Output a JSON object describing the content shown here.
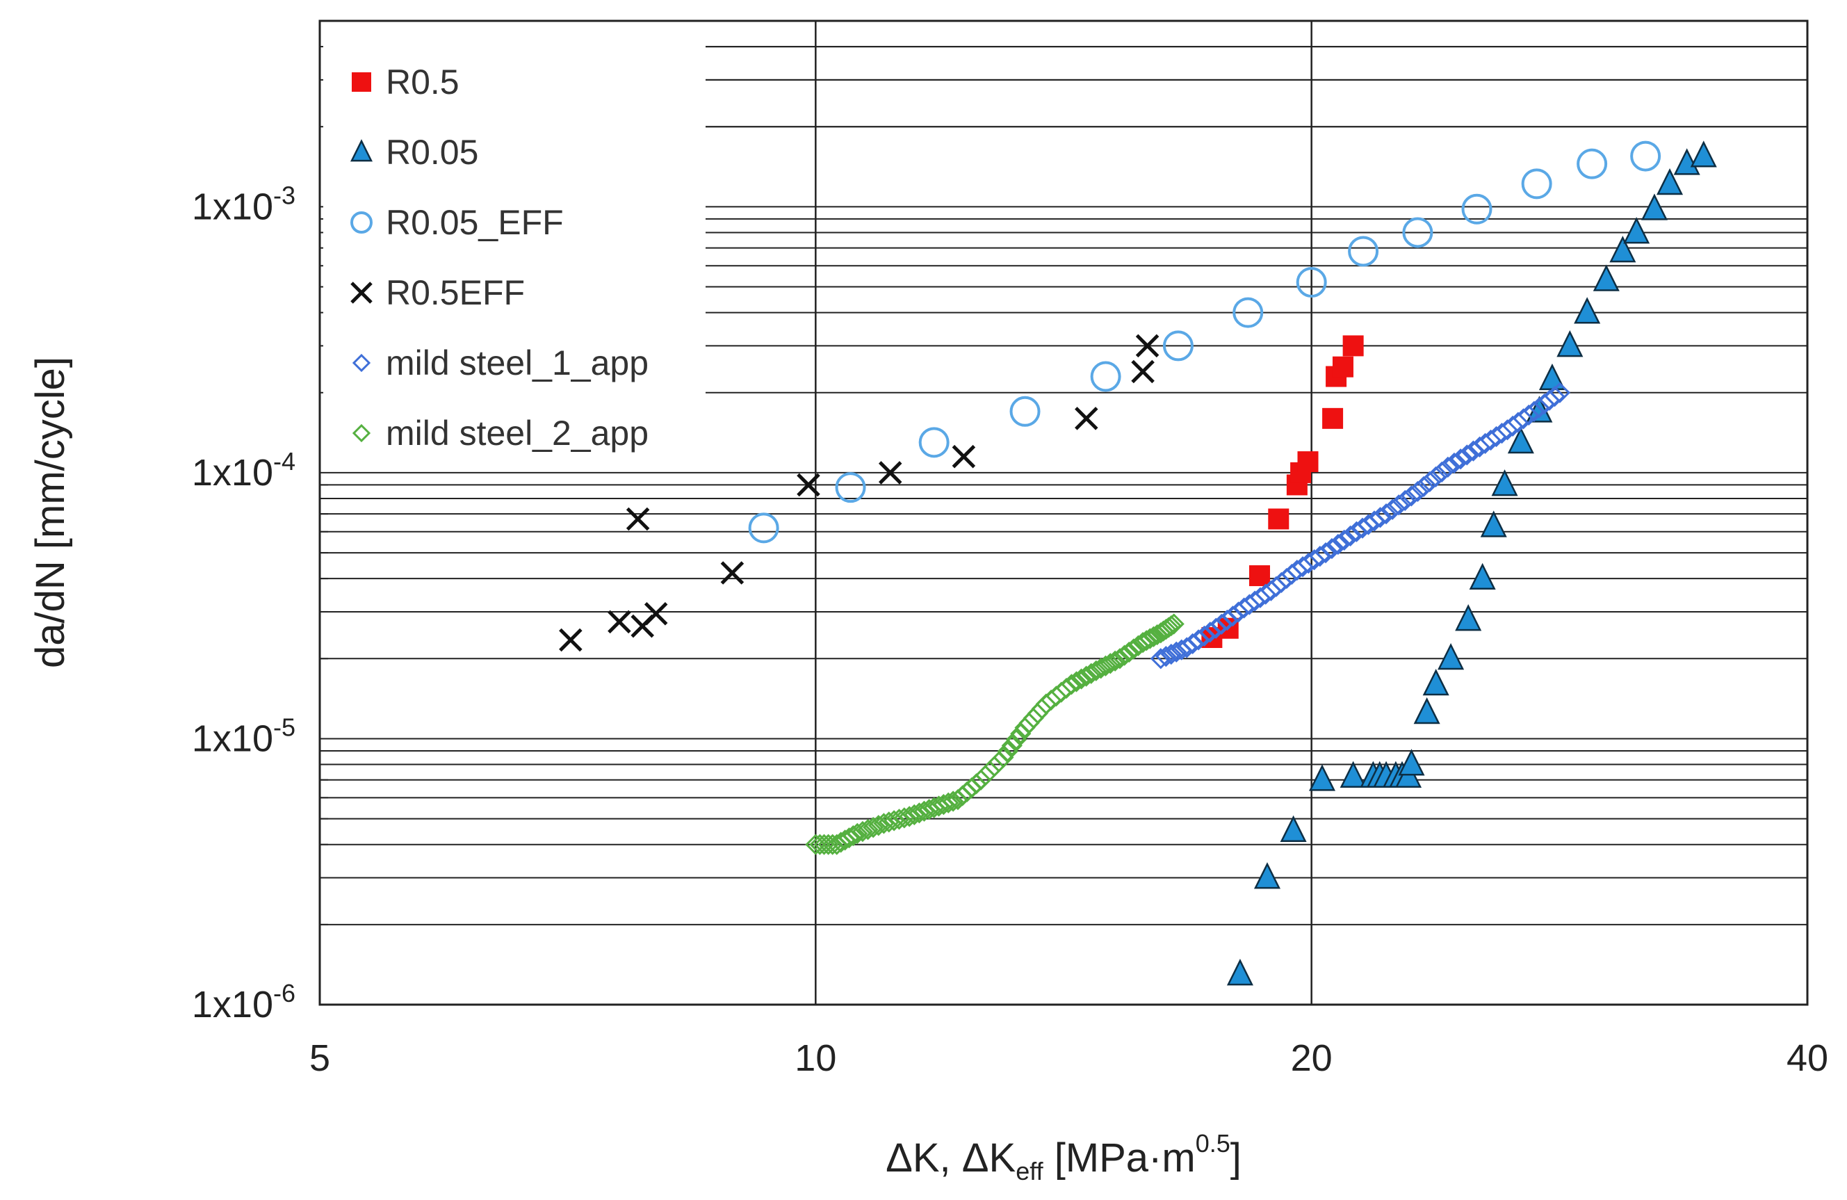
{
  "chart_data": {
    "type": "scatter",
    "title": "",
    "xlabel": "ΔK, ΔKeff [MPa·m0.5]",
    "xlabel_parts": {
      "main": "ΔK, ΔK",
      "sub": "eff",
      "unit_open": " [MPa·m",
      "sup": "0.5",
      "unit_close": "]"
    },
    "ylabel": "da/dN [mm/cycle]",
    "xscale": "log",
    "yscale": "log",
    "xlim": [
      5,
      40
    ],
    "ylim": [
      1e-06,
      0.005
    ],
    "x_ticks": [
      5,
      10,
      20,
      40
    ],
    "x_tick_labels": [
      "5",
      "10",
      "20",
      "40"
    ],
    "y_ticks": [
      1e-06,
      1e-05,
      0.0001,
      0.001
    ],
    "y_tick_labels": [
      {
        "base": "1x10",
        "exp": "-6"
      },
      {
        "base": "1x10",
        "exp": "-5"
      },
      {
        "base": "1x10",
        "exp": "-4"
      },
      {
        "base": "1x10",
        "exp": "-3"
      }
    ],
    "grid": "horizontal minor + major, vertical at major x ticks",
    "legend_position": "top-left",
    "series": [
      {
        "name": "R0.5",
        "marker": "square",
        "color": "#ee1111",
        "points": [
          [
            17.4,
            2.4e-05
          ],
          [
            17.8,
            2.6e-05
          ],
          [
            18.6,
            4.1e-05
          ],
          [
            19.1,
            6.7e-05
          ],
          [
            19.6,
            9e-05
          ],
          [
            19.7,
            0.0001
          ],
          [
            19.9,
            0.00011
          ],
          [
            20.6,
            0.00016
          ],
          [
            20.7,
            0.00023
          ],
          [
            20.9,
            0.00025
          ],
          [
            21.2,
            0.0003
          ]
        ]
      },
      {
        "name": "R0.05",
        "marker": "triangle",
        "color": "#1f8fd6",
        "points": [
          [
            18.1,
            1.3e-06
          ],
          [
            18.8,
            3e-06
          ],
          [
            19.5,
            4.5e-06
          ],
          [
            20.3,
            7e-06
          ],
          [
            21.2,
            7.2e-06
          ],
          [
            21.8,
            7.2e-06
          ],
          [
            22.0,
            7.2e-06
          ],
          [
            22.2,
            7.2e-06
          ],
          [
            22.5,
            7.2e-06
          ],
          [
            22.7,
            7.2e-06
          ],
          [
            22.9,
            7.2e-06
          ],
          [
            23.0,
            8e-06
          ],
          [
            23.5,
            1.25e-05
          ],
          [
            23.8,
            1.6e-05
          ],
          [
            24.3,
            2e-05
          ],
          [
            24.9,
            2.8e-05
          ],
          [
            25.4,
            4e-05
          ],
          [
            25.8,
            6.3e-05
          ],
          [
            26.2,
            9e-05
          ],
          [
            26.8,
            0.00013
          ],
          [
            27.5,
            0.00017
          ],
          [
            28.0,
            0.000225
          ],
          [
            28.7,
            0.0003
          ],
          [
            29.4,
            0.0004
          ],
          [
            30.2,
            0.00053
          ],
          [
            30.9,
            0.00068
          ],
          [
            31.5,
            0.0008
          ],
          [
            32.3,
            0.00098
          ],
          [
            33.0,
            0.00122
          ],
          [
            33.8,
            0.00145
          ],
          [
            34.6,
            0.00155
          ]
        ]
      },
      {
        "name": "R0.05_EFF",
        "marker": "circle-open",
        "color": "#5aa8e6",
        "points": [
          [
            9.3,
            6.2e-05
          ],
          [
            10.5,
            8.8e-05
          ],
          [
            11.8,
            0.00013
          ],
          [
            13.4,
            0.00017
          ],
          [
            15.0,
            0.00023
          ],
          [
            16.6,
            0.0003
          ],
          [
            18.3,
            0.0004
          ],
          [
            20.0,
            0.00052
          ],
          [
            21.5,
            0.00068
          ],
          [
            23.2,
            0.0008
          ],
          [
            25.2,
            0.00098
          ],
          [
            27.4,
            0.00122
          ],
          [
            29.6,
            0.00145
          ],
          [
            31.9,
            0.00155
          ]
        ]
      },
      {
        "name": "R0.5EFF",
        "marker": "x",
        "color": "#111111",
        "points": [
          [
            7.1,
            2.35e-05
          ],
          [
            7.6,
            2.75e-05
          ],
          [
            7.8,
            6.7e-05
          ],
          [
            7.85,
            2.65e-05
          ],
          [
            8.0,
            2.95e-05
          ],
          [
            8.9,
            4.2e-05
          ],
          [
            9.9,
            9e-05
          ],
          [
            11.1,
            0.0001
          ],
          [
            12.3,
            0.000115
          ],
          [
            14.6,
            0.00016
          ],
          [
            15.8,
            0.00024
          ],
          [
            15.9,
            0.0003
          ]
        ]
      },
      {
        "name": "mild steel_1_app",
        "marker": "diamond-open",
        "color": "#3f6fd8",
        "points": [
          [
            16.2,
            2e-05
          ],
          [
            16.8,
            2.2e-05
          ],
          [
            17.5,
            2.6e-05
          ],
          [
            18.2,
            3.1e-05
          ],
          [
            18.9,
            3.6e-05
          ],
          [
            19.6,
            4.3e-05
          ],
          [
            20.4,
            5e-05
          ],
          [
            21.3,
            6e-05
          ],
          [
            22.2,
            7e-05
          ],
          [
            23.2,
            8.5e-05
          ],
          [
            24.2,
            0.000105
          ],
          [
            25.3,
            0.000125
          ],
          [
            26.3,
            0.000145
          ],
          [
            27.3,
            0.00017
          ],
          [
            28.3,
            0.0002
          ]
        ]
      },
      {
        "name": "mild steel_2_app",
        "marker": "diamond-open",
        "color": "#55b040",
        "points": [
          [
            10.0,
            4e-06
          ],
          [
            10.3,
            4e-06
          ],
          [
            10.6,
            4.4e-06
          ],
          [
            11.0,
            4.8e-06
          ],
          [
            11.4,
            5.1e-06
          ],
          [
            11.8,
            5.5e-06
          ],
          [
            12.2,
            5.9e-06
          ],
          [
            12.6,
            7e-06
          ],
          [
            13.0,
            8.5e-06
          ],
          [
            13.4,
            1.1e-05
          ],
          [
            13.8,
            1.35e-05
          ],
          [
            14.3,
            1.6e-05
          ],
          [
            14.8,
            1.8e-05
          ],
          [
            15.3,
            2e-05
          ],
          [
            15.8,
            2.3e-05
          ],
          [
            16.2,
            2.5e-05
          ],
          [
            16.5,
            2.7e-05
          ]
        ]
      }
    ]
  }
}
